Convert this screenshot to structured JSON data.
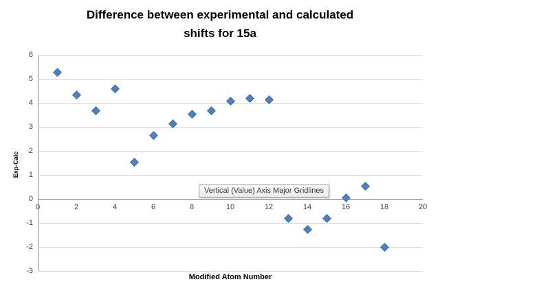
{
  "tooltip": "Vertical (Value) Axis Major Gridlines",
  "chart_data": {
    "type": "scatter",
    "title": "Difference between experimental and calculated shifts for 15a",
    "title_lines": [
      "Difference between experimental and calculated",
      "shifts for 15a"
    ],
    "xlabel": "Modified Atom Number",
    "ylabel": "Exp-Calc",
    "xlim": [
      0,
      20
    ],
    "ylim": [
      -3,
      6
    ],
    "xticks": [
      0,
      2,
      4,
      6,
      8,
      10,
      12,
      14,
      16,
      18,
      20
    ],
    "yticks": [
      -3,
      -2,
      -1,
      0,
      1,
      2,
      3,
      4,
      5,
      6
    ],
    "grid": "horizontal",
    "legend": "none",
    "marker": "diamond",
    "marker_color": "#4F81BD",
    "x": [
      1,
      2,
      3,
      4,
      5,
      6,
      7,
      8,
      9,
      10,
      11,
      12,
      13,
      14,
      15,
      16,
      17,
      18
    ],
    "y": [
      5.3,
      4.35,
      3.7,
      4.6,
      1.55,
      2.65,
      3.15,
      3.55,
      3.7,
      4.1,
      4.2,
      4.15,
      -0.8,
      -1.25,
      -0.8,
      0.05,
      0.55,
      -2.0
    ]
  }
}
